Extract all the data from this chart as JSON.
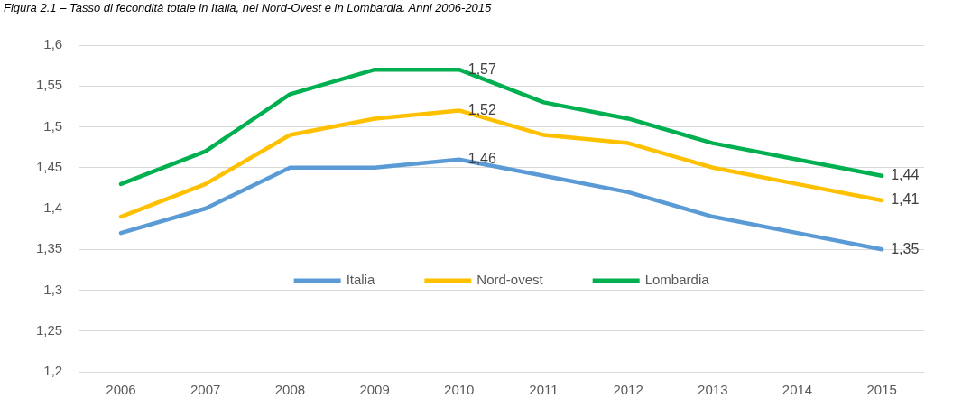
{
  "chart_data": {
    "type": "line",
    "title": "Figura 2.1 – Tasso di fecondità totale in Italia, nel Nord-Ovest e in Lombardia. Anni 2006-2015",
    "categories": [
      "2006",
      "2007",
      "2008",
      "2009",
      "2010",
      "2011",
      "2012",
      "2013",
      "2014",
      "2015"
    ],
    "series": [
      {
        "name": "Italia",
        "color": "#5b9bd5",
        "values": [
          1.37,
          1.4,
          1.45,
          1.45,
          1.46,
          1.44,
          1.42,
          1.39,
          1.37,
          1.35
        ],
        "value_labels": [
          null,
          null,
          null,
          null,
          "1,46",
          null,
          null,
          null,
          null,
          "1,35"
        ]
      },
      {
        "name": "Nord-ovest",
        "color": "#ffc000",
        "values": [
          1.39,
          1.43,
          1.49,
          1.51,
          1.52,
          1.49,
          1.48,
          1.45,
          1.43,
          1.41
        ],
        "value_labels": [
          null,
          null,
          null,
          null,
          "1,52",
          null,
          null,
          null,
          null,
          "1,41"
        ]
      },
      {
        "name": "Lombardia",
        "color": "#00b050",
        "values": [
          1.43,
          1.47,
          1.54,
          1.57,
          1.57,
          1.53,
          1.51,
          1.48,
          1.46,
          1.44
        ],
        "value_labels": [
          null,
          null,
          null,
          null,
          "1,57",
          null,
          null,
          null,
          null,
          "1,44"
        ]
      }
    ],
    "ylim": [
      1.2,
      1.6
    ],
    "yticks": [
      {
        "value": 1.2,
        "label": "1,2"
      },
      {
        "value": 1.25,
        "label": "1,25"
      },
      {
        "value": 1.3,
        "label": "1,3"
      },
      {
        "value": 1.35,
        "label": "1,35"
      },
      {
        "value": 1.4,
        "label": "1,4"
      },
      {
        "value": 1.45,
        "label": "1,45"
      },
      {
        "value": 1.5,
        "label": "1,5"
      },
      {
        "value": 1.55,
        "label": "1,55"
      },
      {
        "value": 1.6,
        "label": "1,6"
      }
    ],
    "grid": "y",
    "legend": "bottom"
  }
}
